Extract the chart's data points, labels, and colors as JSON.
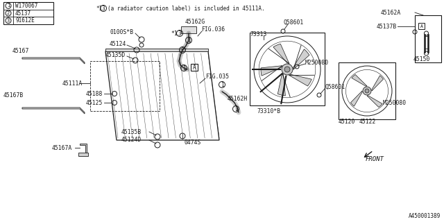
{
  "bg_color": "#ffffff",
  "line_color": "#1a1a1a",
  "text_color": "#1a1a1a",
  "diagram_id": "A450001389",
  "legend": [
    {
      "circle": "1",
      "code": "W170067"
    },
    {
      "circle": "2",
      "code": "45137"
    },
    {
      "circle": "3",
      "code": "91612E"
    }
  ]
}
